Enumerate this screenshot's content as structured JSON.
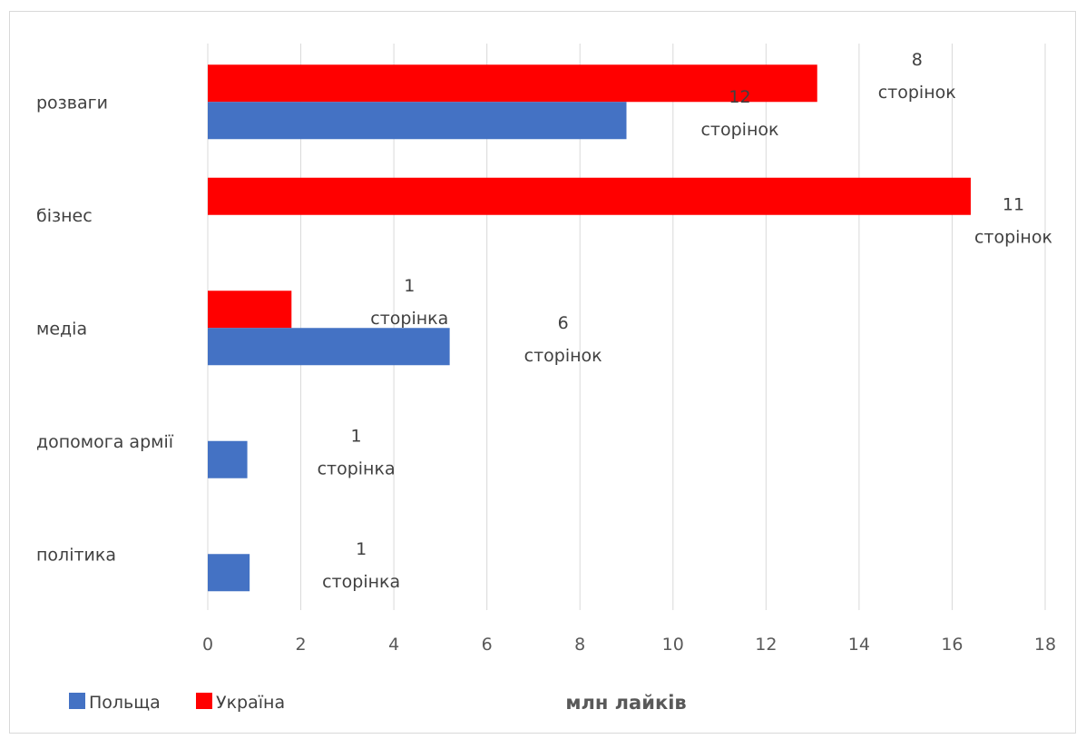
{
  "chart_data": {
    "type": "bar",
    "orientation": "horizontal",
    "categories": [
      "розваги",
      "бізнес",
      "медіа",
      "допомога армії",
      "політика"
    ],
    "series": [
      {
        "name": "Україна",
        "color": "#ff0000",
        "values": [
          13.1,
          16.4,
          1.8,
          null,
          null
        ]
      },
      {
        "name": "Польща",
        "color": "#4472c4",
        "values": [
          9.0,
          null,
          5.2,
          0.85,
          0.9
        ]
      }
    ],
    "data_labels": [
      {
        "category": "розваги",
        "series": "Україна",
        "line1": "8",
        "line2": "сторінок"
      },
      {
        "category": "розваги",
        "series": "Польща",
        "line1": "12",
        "line2": "сторінок"
      },
      {
        "category": "бізнес",
        "series": "Україна",
        "line1": "11",
        "line2": "сторінок"
      },
      {
        "category": "медіа",
        "series": "Україна",
        "line1": "1",
        "line2": "сторінка"
      },
      {
        "category": "медіа",
        "series": "Польща",
        "line1": "6",
        "line2": "сторінок"
      },
      {
        "category": "допомога армії",
        "series": "Польща",
        "line1": "1",
        "line2": "сторінка"
      },
      {
        "category": "політика",
        "series": "Польща",
        "line1": "1",
        "line2": "сторінка"
      }
    ],
    "xlabel": "млн лайків",
    "ylabel": "",
    "xlim": [
      0,
      18
    ],
    "xticks": [
      0,
      2,
      4,
      6,
      8,
      10,
      12,
      14,
      16,
      18
    ],
    "grid": true,
    "legend": {
      "placement": "bottom-left",
      "entries": [
        "Польща",
        "Україна"
      ]
    }
  }
}
